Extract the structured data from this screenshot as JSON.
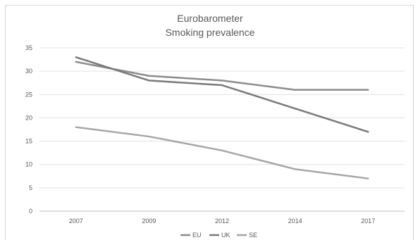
{
  "chart_data": {
    "type": "line",
    "title": "Eurobarometer",
    "subtitle": "Smoking prevalence",
    "categories": [
      "2007",
      "2009",
      "2012",
      "2014",
      "2017"
    ],
    "ylim": [
      0,
      35
    ],
    "yticks": [
      0,
      5,
      10,
      15,
      20,
      25,
      30,
      35
    ],
    "grid": true,
    "legend_position": "bottom",
    "series": [
      {
        "name": "EU",
        "values": [
          32,
          29,
          28,
          26,
          26
        ],
        "color": "#8c8c8c"
      },
      {
        "name": "UK",
        "values": [
          33,
          28,
          27,
          22,
          17
        ],
        "color": "#7a7a7a"
      },
      {
        "name": "SE",
        "values": [
          18,
          16,
          13,
          9,
          7
        ],
        "color": "#a6a6a6"
      }
    ]
  }
}
